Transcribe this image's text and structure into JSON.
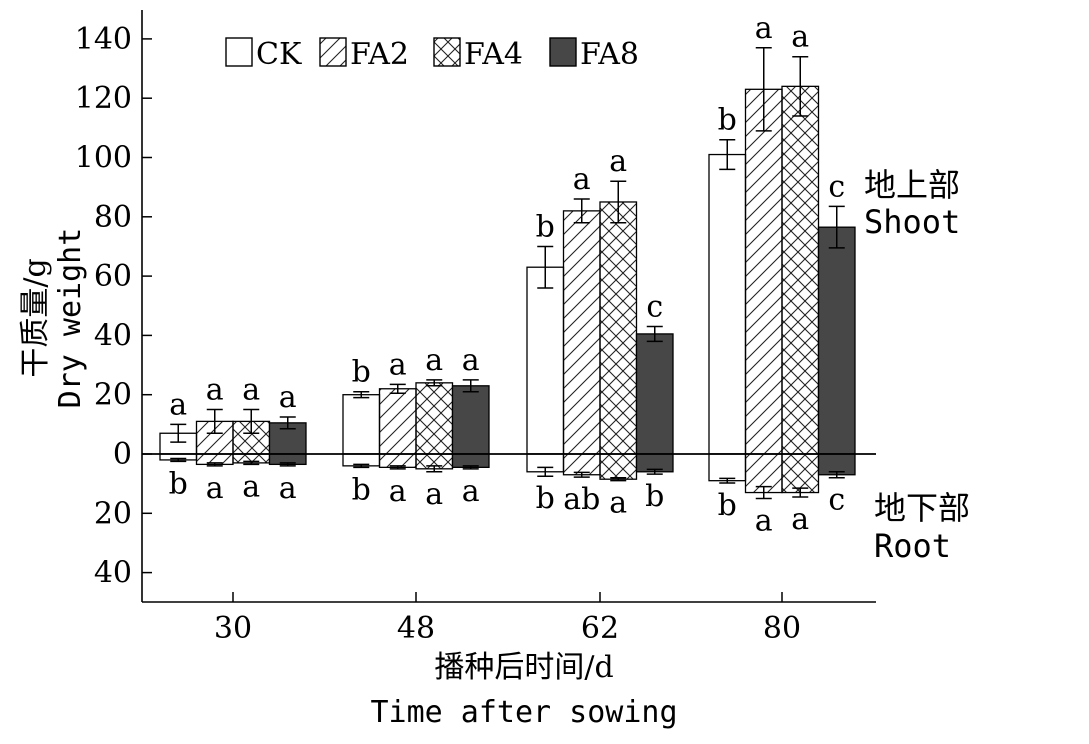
{
  "chart_data": {
    "type": "bar",
    "categories": [
      "30",
      "48",
      "62",
      "80"
    ],
    "xlabel_cn": "播种后时间/d",
    "xlabel_en": "Time after sowing",
    "ylabel_cn": "干质量/g",
    "ylabel_en": "Dry weight",
    "y_ticks_shoot": [
      "0",
      "20",
      "40",
      "60",
      "80",
      "100",
      "120",
      "140"
    ],
    "y_ticks_root": [
      "20",
      "40"
    ],
    "ylim": [
      -50,
      150
    ],
    "shoot_label_cn": "地上部",
    "shoot_label_en": "Shoot",
    "root_label_cn": "地下部",
    "root_label_en": "Root",
    "grid": false,
    "legend_position": "top-left",
    "series": [
      {
        "name": "CK",
        "pattern": "none",
        "color": "#ffffff",
        "shoot": [
          7,
          20,
          63,
          101
        ],
        "shoot_err": [
          3,
          1,
          7,
          5
        ],
        "shoot_sig": [
          "a",
          "b",
          "b",
          "b"
        ],
        "root": [
          2,
          4,
          6,
          9
        ],
        "root_err": [
          0.5,
          0.5,
          1.5,
          0.8
        ],
        "root_sig": [
          "b",
          "b",
          "b",
          "b"
        ]
      },
      {
        "name": "FA2",
        "pattern": "diagonal",
        "color": "#ffffff",
        "shoot": [
          11,
          22,
          82,
          123
        ],
        "shoot_err": [
          4,
          1.5,
          4,
          14
        ],
        "shoot_sig": [
          "a",
          "a",
          "a",
          "a"
        ],
        "root": [
          3.5,
          4.5,
          7,
          13
        ],
        "root_err": [
          0.5,
          0.5,
          0.8,
          2
        ],
        "root_sig": [
          "a",
          "a",
          "ab",
          "a"
        ]
      },
      {
        "name": "FA4",
        "pattern": "crosshatch",
        "color": "#ffffff",
        "shoot": [
          11,
          24,
          85,
          124
        ],
        "shoot_err": [
          4,
          1,
          7,
          10
        ],
        "shoot_sig": [
          "a",
          "a",
          "a",
          "a"
        ],
        "root": [
          3,
          5,
          8.5,
          13
        ],
        "root_err": [
          0.5,
          1,
          0.5,
          1.5
        ],
        "root_sig": [
          "a",
          "a",
          "a",
          "a"
        ]
      },
      {
        "name": "FA8",
        "pattern": "solid",
        "color": "#474747",
        "shoot": [
          10.5,
          23,
          40.5,
          76.5
        ],
        "shoot_err": [
          2,
          2,
          2.5,
          7
        ],
        "shoot_sig": [
          "a",
          "a",
          "c",
          "c"
        ],
        "root": [
          3.5,
          4.5,
          6,
          7
        ],
        "root_err": [
          0.5,
          0.5,
          0.8,
          1
        ],
        "root_sig": [
          "a",
          "a",
          "b",
          "c"
        ]
      }
    ]
  }
}
